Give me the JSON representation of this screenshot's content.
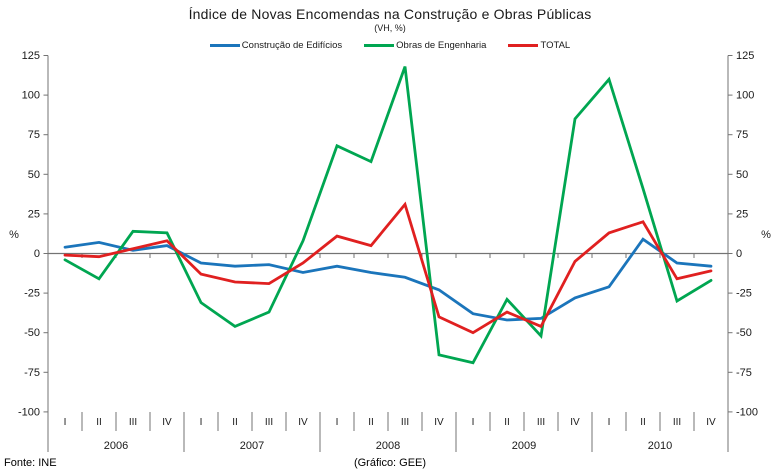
{
  "title": "Índice de Novas Encomendas na Construção e Obras Públicas",
  "subtitle": "(VH, %)",
  "footer": {
    "source": "Fonte: INE",
    "credit": "(Gráfico: GEE)"
  },
  "chart_data": {
    "type": "line",
    "title": "Índice de Novas Encomendas na Construção e Obras Públicas",
    "subtitle": "(VH, %)",
    "ylabel_left": "%",
    "ylabel_right": "%",
    "ylim": [
      -100,
      125
    ],
    "yticks": [
      -100,
      -75,
      -50,
      -25,
      0,
      25,
      50,
      75,
      100,
      125
    ],
    "grid": false,
    "legend_position": "top",
    "x_axis": {
      "years": [
        "2006",
        "2007",
        "2008",
        "2009",
        "2010"
      ],
      "quarter_labels": [
        "I",
        "II",
        "III",
        "IV"
      ],
      "categories": [
        "2006-I",
        "2006-II",
        "2006-III",
        "2006-IV",
        "2007-I",
        "2007-II",
        "2007-III",
        "2007-IV",
        "2008-I",
        "2008-II",
        "2008-III",
        "2008-IV",
        "2009-I",
        "2009-II",
        "2009-III",
        "2009-IV",
        "2010-I",
        "2010-II",
        "2010-III",
        "2010-IV"
      ]
    },
    "series": [
      {
        "name": "Construção de Edifícios",
        "color": "#1B75BB",
        "values": [
          4,
          7,
          2,
          5,
          -6,
          -8,
          -7,
          -12,
          -8,
          -12,
          -15,
          -23,
          -38,
          -42,
          -41,
          -28,
          -21,
          9,
          -6,
          -8
        ]
      },
      {
        "name": "Obras de Engenharia",
        "color": "#00A651",
        "values": [
          -4,
          -16,
          14,
          13,
          -31,
          -46,
          -37,
          8,
          68,
          58,
          118,
          -64,
          -69,
          -29,
          -52,
          85,
          110,
          41,
          -30,
          -17
        ]
      },
      {
        "name": "TOTAL",
        "color": "#E02020",
        "values": [
          -1,
          -2,
          3,
          8,
          -13,
          -18,
          -19,
          -6,
          11,
          5,
          31,
          -40,
          -50,
          -37,
          -46,
          -5,
          13,
          20,
          -16,
          -11
        ]
      }
    ]
  }
}
